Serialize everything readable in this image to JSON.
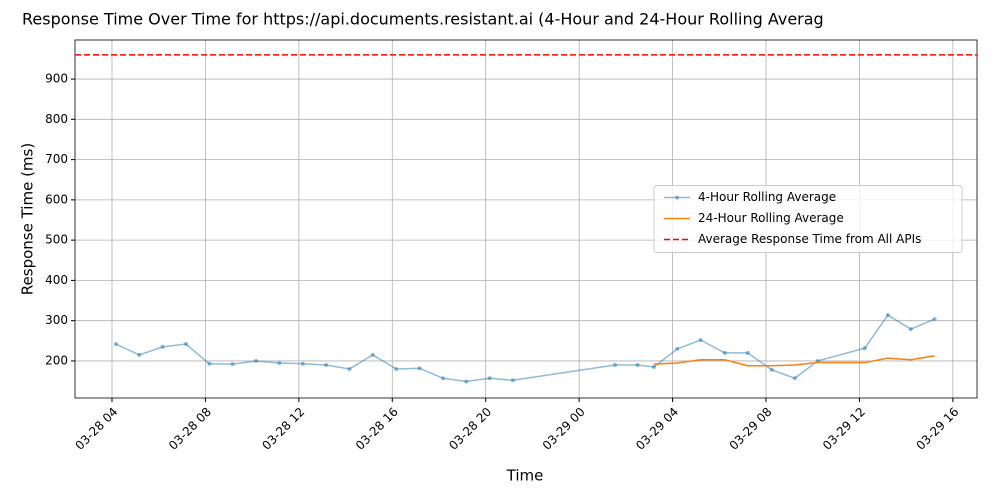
{
  "chart_data": {
    "type": "line",
    "title": "Response Time Over Time for https://api.documents.resistant.ai (4-Hour and 24-Hour Rolling Averag",
    "x_label": "Time",
    "y_label": "Response Time (ms)",
    "xlim": [
      "03-28 02:25",
      "03-29 17:02"
    ],
    "xticks": [
      "03-28 04",
      "03-28 08",
      "03-28 12",
      "03-28 16",
      "03-28 20",
      "03-29 00",
      "03-29 04",
      "03-29 08",
      "03-29 12",
      "03-29 16"
    ],
    "ylim": [
      108,
      997
    ],
    "yticks": [
      200,
      300,
      400,
      500,
      600,
      700,
      800,
      900
    ],
    "grid": true,
    "legend": "center right",
    "series": [
      {
        "name": "4-Hour Rolling Average",
        "color": "#1f77b4",
        "markers": true,
        "x": [
          "03-28 04:10",
          "03-28 05:10",
          "03-28 06:10",
          "03-28 07:10",
          "03-28 08:10",
          "03-28 09:10",
          "03-28 10:10",
          "03-28 11:10",
          "03-28 12:10",
          "03-28 13:10",
          "03-28 14:10",
          "03-28 15:10",
          "03-28 16:10",
          "03-28 17:10",
          "03-28 18:10",
          "03-28 19:10",
          "03-28 20:10",
          "03-28 21:10",
          "03-29 01:32",
          "03-29 02:30",
          "03-29 03:12",
          "03-29 04:12",
          "03-29 05:12",
          "03-29 06:14",
          "03-29 07:13",
          "03-29 08:15",
          "03-29 09:14",
          "03-29 10:13",
          "03-29 12:14",
          "03-29 13:13",
          "03-29 14:12",
          "03-29 15:13"
        ],
        "values": [
          242,
          215,
          235,
          242,
          193,
          192,
          200,
          195,
          193,
          190,
          180,
          215,
          180,
          182,
          157,
          149,
          157,
          152,
          190,
          190,
          185,
          230,
          252,
          220,
          220,
          178,
          157,
          200,
          232,
          314,
          279,
          304
        ]
      },
      {
        "name": "24-Hour Rolling Average",
        "color": "#ff7f0e",
        "markers": false,
        "x": [
          "03-29 03:12",
          "03-29 04:12",
          "03-29 05:12",
          "03-29 06:14",
          "03-29 07:13",
          "03-29 08:15",
          "03-29 09:14",
          "03-29 10:13",
          "03-29 12:14",
          "03-29 13:13",
          "03-29 14:12",
          "03-29 15:13"
        ],
        "values": [
          192,
          195,
          203,
          203,
          188,
          188,
          190,
          196,
          196,
          207,
          203,
          213
        ]
      }
    ],
    "reference_line": {
      "name": "Average Response Time from All APIs",
      "value": 960,
      "color": "#ff0000"
    }
  }
}
